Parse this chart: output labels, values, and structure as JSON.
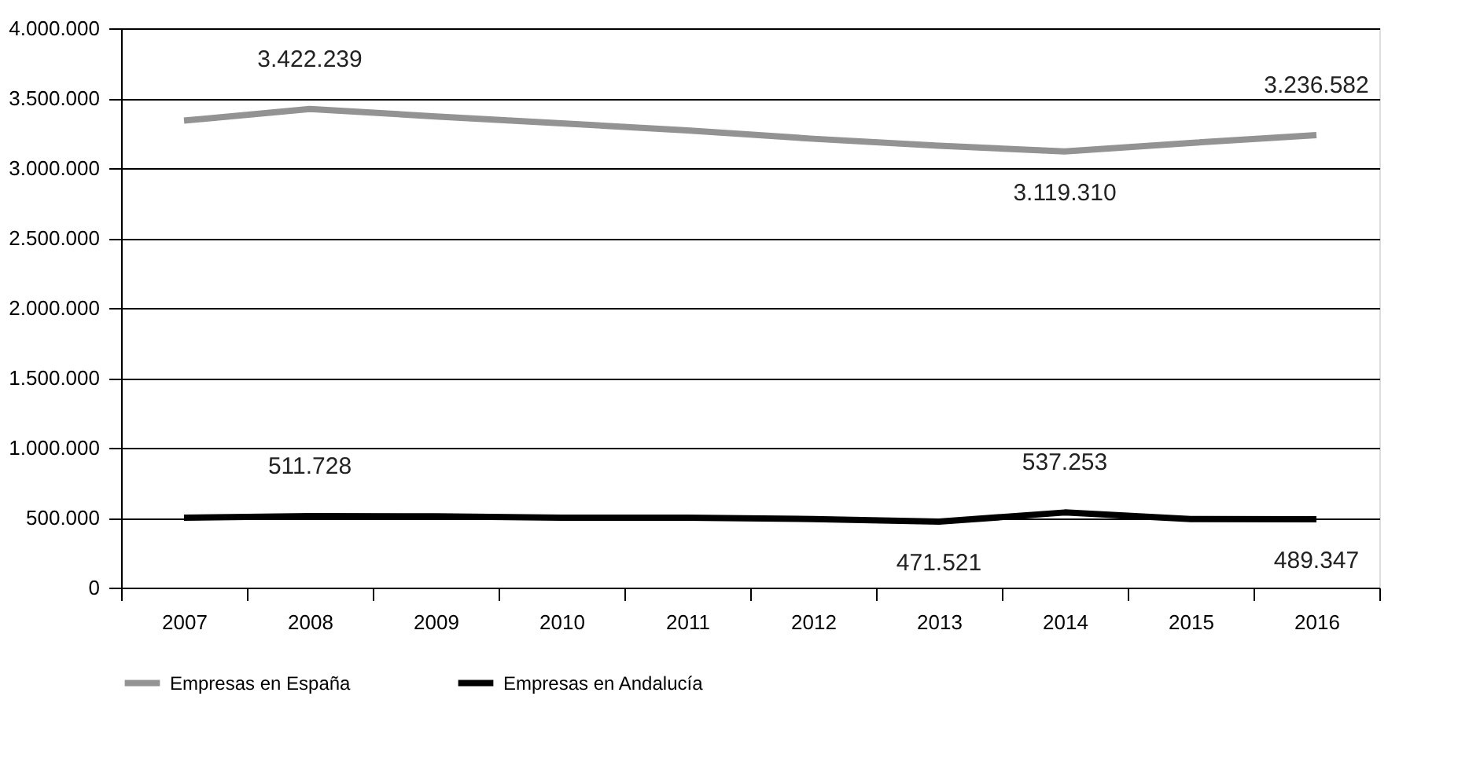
{
  "chart_data": {
    "type": "line",
    "categories": [
      "2007",
      "2008",
      "2009",
      "2010",
      "2011",
      "2012",
      "2013",
      "2014",
      "2015",
      "2016"
    ],
    "series": [
      {
        "name": "Empresas en España",
        "color": "#939393",
        "values": [
          3340000,
          3422239,
          3370000,
          3320000,
          3270000,
          3210000,
          3160000,
          3119310,
          3180000,
          3236582
        ],
        "value_labels": [
          null,
          "3.422.239",
          null,
          null,
          null,
          null,
          null,
          "3.119.310",
          null,
          "3.236.582"
        ]
      },
      {
        "name": "Empresas en Andalucía",
        "color": "#000000",
        "values": [
          500000,
          511728,
          510000,
          500000,
          500000,
          490000,
          471521,
          537253,
          490000,
          489347
        ],
        "value_labels": [
          null,
          "511.728",
          null,
          null,
          null,
          null,
          "471.521",
          "537.253",
          null,
          "489.347"
        ]
      }
    ],
    "ylim": [
      0,
      4000000
    ],
    "yticks": [
      {
        "value": 0,
        "label": "0"
      },
      {
        "value": 500000,
        "label": "500.000"
      },
      {
        "value": 1000000,
        "label": "1.000.000"
      },
      {
        "value": 1500000,
        "label": "1.500.000"
      },
      {
        "value": 2000000,
        "label": "2.000.000"
      },
      {
        "value": 2500000,
        "label": "2.500.000"
      },
      {
        "value": 3000000,
        "label": "3.000.000"
      },
      {
        "value": 3500000,
        "label": "3.500.000"
      },
      {
        "value": 4000000,
        "label": "4.000.000"
      }
    ],
    "grid": "y",
    "legend": "bottom",
    "marker": "none",
    "line_style": "solid"
  }
}
